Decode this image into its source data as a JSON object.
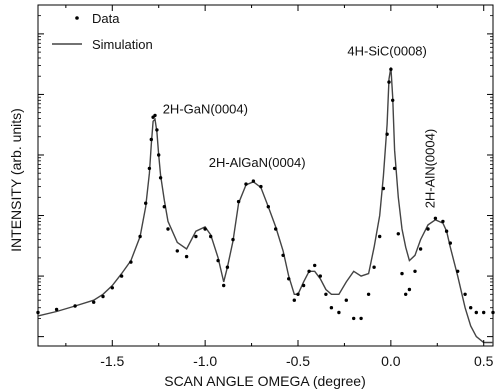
{
  "chart_data": {
    "type": "line",
    "title": "",
    "xlabel": "SCAN ANGLE OMEGA (degree)",
    "ylabel": "INTENSITY (arb. units)",
    "xlim": [
      -1.9,
      0.55
    ],
    "y_scale": "log",
    "ylim": [
      0.7,
      300000
    ],
    "x_ticks": [
      -1.5,
      -1.0,
      -0.5,
      0.0,
      0.5
    ],
    "x_tick_labels": [
      "-1.5",
      "-1.0",
      "-0.5",
      "0.0",
      "0.5"
    ],
    "y_tick_labels_shown": false,
    "grid": false,
    "legend_position": "top-left",
    "series": [
      {
        "name": "Data",
        "style": "dots",
        "x": [
          -1.9,
          -1.8,
          -1.7,
          -1.6,
          -1.55,
          -1.5,
          -1.45,
          -1.4,
          -1.35,
          -1.32,
          -1.3,
          -1.29,
          -1.28,
          -1.27,
          -1.26,
          -1.25,
          -1.24,
          -1.22,
          -1.2,
          -1.15,
          -1.1,
          -1.05,
          -1.0,
          -0.97,
          -0.93,
          -0.9,
          -0.88,
          -0.85,
          -0.82,
          -0.78,
          -0.74,
          -0.7,
          -0.66,
          -0.62,
          -0.58,
          -0.55,
          -0.52,
          -0.5,
          -0.47,
          -0.44,
          -0.41,
          -0.38,
          -0.35,
          -0.32,
          -0.28,
          -0.24,
          -0.2,
          -0.16,
          -0.12,
          -0.09,
          -0.06,
          -0.04,
          -0.02,
          -0.01,
          0.0,
          0.01,
          0.02,
          0.04,
          0.06,
          0.08,
          0.1,
          0.13,
          0.16,
          0.2,
          0.24,
          0.28,
          0.3,
          0.32,
          0.36,
          0.4,
          0.43,
          0.46,
          0.5,
          0.55
        ],
        "y": [
          2.5,
          2.8,
          3.2,
          3.7,
          4.6,
          6.4,
          10,
          17,
          45,
          160,
          600,
          1800,
          4200,
          4500,
          2600,
          1000,
          420,
          140,
          60,
          26,
          21,
          45,
          60,
          45,
          18,
          7,
          14,
          40,
          170,
          330,
          370,
          300,
          140,
          60,
          22,
          9,
          4,
          5,
          7,
          12,
          15,
          10,
          5,
          3,
          2.5,
          4,
          2,
          2,
          5,
          14,
          45,
          280,
          2200,
          16000,
          26000,
          8000,
          600,
          50,
          11,
          5,
          6,
          12,
          28,
          60,
          90,
          80,
          55,
          35,
          12,
          5,
          3,
          2.5,
          2.5,
          2.5
        ]
      },
      {
        "name": "Simulation",
        "style": "line",
        "x": [
          -1.9,
          -1.8,
          -1.7,
          -1.6,
          -1.55,
          -1.5,
          -1.45,
          -1.4,
          -1.35,
          -1.32,
          -1.3,
          -1.29,
          -1.28,
          -1.27,
          -1.26,
          -1.25,
          -1.24,
          -1.22,
          -1.2,
          -1.15,
          -1.1,
          -1.05,
          -1.0,
          -0.97,
          -0.93,
          -0.9,
          -0.88,
          -0.85,
          -0.82,
          -0.78,
          -0.74,
          -0.7,
          -0.66,
          -0.62,
          -0.58,
          -0.55,
          -0.52,
          -0.5,
          -0.47,
          -0.44,
          -0.41,
          -0.38,
          -0.35,
          -0.32,
          -0.28,
          -0.24,
          -0.2,
          -0.16,
          -0.12,
          -0.09,
          -0.06,
          -0.04,
          -0.02,
          -0.01,
          0.0,
          0.01,
          0.02,
          0.04,
          0.06,
          0.08,
          0.1,
          0.13,
          0.16,
          0.2,
          0.24,
          0.28,
          0.3,
          0.32,
          0.36,
          0.4,
          0.43,
          0.46,
          0.5,
          0.55
        ],
        "y": [
          2.2,
          2.6,
          3.2,
          4,
          5,
          7,
          11,
          18,
          45,
          140,
          500,
          1500,
          3600,
          3900,
          2400,
          1000,
          460,
          180,
          80,
          36,
          28,
          55,
          65,
          48,
          20,
          8,
          14,
          38,
          160,
          320,
          360,
          290,
          140,
          65,
          26,
          10,
          5,
          5,
          8,
          12,
          12,
          9,
          6,
          5,
          5,
          8,
          12,
          10,
          11,
          30,
          100,
          450,
          3200,
          18000,
          28000,
          9000,
          1200,
          200,
          60,
          30,
          18,
          22,
          40,
          70,
          85,
          75,
          55,
          30,
          10,
          3,
          1.5,
          1.0,
          0.8,
          0.8
        ]
      }
    ],
    "annotations": [
      {
        "text": "2H-GaN(0004)",
        "x": -1.25,
        "y": 4500
      },
      {
        "text": "2H-AlGaN(0004)",
        "x": -0.72,
        "y": 370
      },
      {
        "text": "4H-SiC(0008)",
        "x": -0.02,
        "y": 26000
      },
      {
        "text": "2H-AlN(0004)",
        "x": 0.29,
        "y": 90
      }
    ]
  }
}
